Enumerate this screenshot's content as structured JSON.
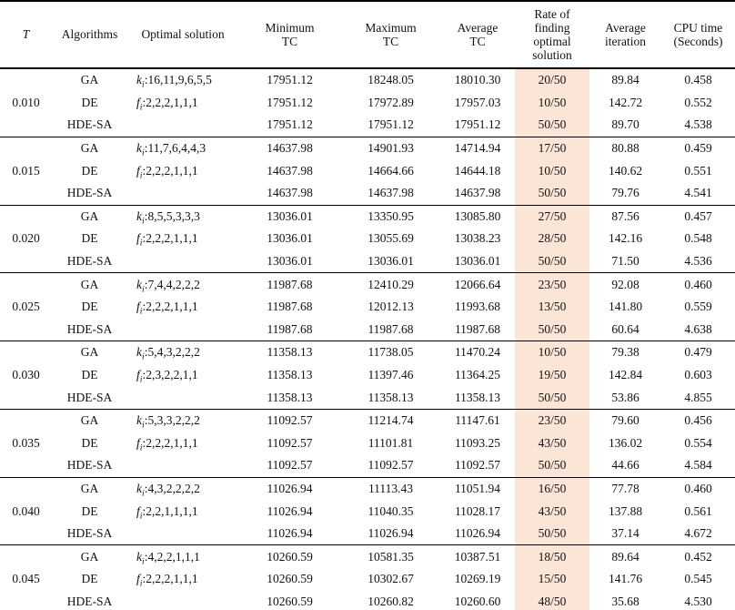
{
  "table": {
    "highlight_color": "#fbe5d6",
    "columns": [
      {
        "label": "T"
      },
      {
        "label": "Algorithms"
      },
      {
        "label": "Optimal solution"
      },
      {
        "label": "Minimum\nTC"
      },
      {
        "label": "Maximum\nTC"
      },
      {
        "label": "Average\nTC"
      },
      {
        "label": "Rate of\nfinding\noptimal\nsolution"
      },
      {
        "label": "Average\niteration"
      },
      {
        "label": "CPU time\n(Seconds)"
      }
    ],
    "groups": [
      {
        "t": "0.010",
        "rows": [
          {
            "algorithm": "GA",
            "solution_var": "k",
            "solution_sub": "i",
            "solution_rest": ":16,11,9,6,5,5",
            "min_tc": "17951.12",
            "max_tc": "18248.05",
            "avg_tc": "18010.30",
            "rate": "20/50",
            "avg_iter": "89.84",
            "cpu_time": "0.458"
          },
          {
            "algorithm": "DE",
            "solution_var": "f",
            "solution_sub": "i",
            "solution_rest": ":2,2,2,1,1,1",
            "min_tc": "17951.12",
            "max_tc": "17972.89",
            "avg_tc": "17957.03",
            "rate": "10/50",
            "avg_iter": "142.72",
            "cpu_time": "0.552"
          },
          {
            "algorithm": "HDE-SA",
            "solution_var": "",
            "solution_sub": "",
            "solution_rest": "",
            "min_tc": "17951.12",
            "max_tc": "17951.12",
            "avg_tc": "17951.12",
            "rate": "50/50",
            "avg_iter": "89.70",
            "cpu_time": "4.538"
          }
        ]
      },
      {
        "t": "0.015",
        "rows": [
          {
            "algorithm": "GA",
            "solution_var": "k",
            "solution_sub": "i",
            "solution_rest": ":11,7,6,4,4,3",
            "min_tc": "14637.98",
            "max_tc": "14901.93",
            "avg_tc": "14714.94",
            "rate": "17/50",
            "avg_iter": "80.88",
            "cpu_time": "0.459"
          },
          {
            "algorithm": "DE",
            "solution_var": "f",
            "solution_sub": "i",
            "solution_rest": ":2,2,2,1,1,1",
            "min_tc": "14637.98",
            "max_tc": "14664.66",
            "avg_tc": "14644.18",
            "rate": "10/50",
            "avg_iter": "140.62",
            "cpu_time": "0.551"
          },
          {
            "algorithm": "HDE-SA",
            "solution_var": "",
            "solution_sub": "",
            "solution_rest": "",
            "min_tc": "14637.98",
            "max_tc": "14637.98",
            "avg_tc": "14637.98",
            "rate": "50/50",
            "avg_iter": "79.76",
            "cpu_time": "4.541"
          }
        ]
      },
      {
        "t": "0.020",
        "rows": [
          {
            "algorithm": "GA",
            "solution_var": "k",
            "solution_sub": "i",
            "solution_rest": ":8,5,5,3,3,3",
            "min_tc": "13036.01",
            "max_tc": "13350.95",
            "avg_tc": "13085.80",
            "rate": "27/50",
            "avg_iter": "87.56",
            "cpu_time": "0.457"
          },
          {
            "algorithm": "DE",
            "solution_var": "f",
            "solution_sub": "i",
            "solution_rest": ":2,2,2,1,1,1",
            "min_tc": "13036.01",
            "max_tc": "13055.69",
            "avg_tc": "13038.23",
            "rate": "28/50",
            "avg_iter": "142.16",
            "cpu_time": "0.548"
          },
          {
            "algorithm": "HDE-SA",
            "solution_var": "",
            "solution_sub": "",
            "solution_rest": "",
            "min_tc": "13036.01",
            "max_tc": "13036.01",
            "avg_tc": "13036.01",
            "rate": "50/50",
            "avg_iter": "71.50",
            "cpu_time": "4.536"
          }
        ]
      },
      {
        "t": "0.025",
        "rows": [
          {
            "algorithm": "GA",
            "solution_var": "k",
            "solution_sub": "i",
            "solution_rest": ":7,4,4,2,2,2",
            "min_tc": "11987.68",
            "max_tc": "12410.29",
            "avg_tc": "12066.64",
            "rate": "23/50",
            "avg_iter": "92.08",
            "cpu_time": "0.460"
          },
          {
            "algorithm": "DE",
            "solution_var": "f",
            "solution_sub": "i",
            "solution_rest": ":2,2,2,1,1,1",
            "min_tc": "11987.68",
            "max_tc": "12012.13",
            "avg_tc": "11993.68",
            "rate": "13/50",
            "avg_iter": "141.80",
            "cpu_time": "0.559"
          },
          {
            "algorithm": "HDE-SA",
            "solution_var": "",
            "solution_sub": "",
            "solution_rest": "",
            "min_tc": "11987.68",
            "max_tc": "11987.68",
            "avg_tc": "11987.68",
            "rate": "50/50",
            "avg_iter": "60.64",
            "cpu_time": "4.638"
          }
        ]
      },
      {
        "t": "0.030",
        "rows": [
          {
            "algorithm": "GA",
            "solution_var": "k",
            "solution_sub": "i",
            "solution_rest": ":5,4,3,2,2,2",
            "min_tc": "11358.13",
            "max_tc": "11738.05",
            "avg_tc": "11470.24",
            "rate": "10/50",
            "avg_iter": "79.38",
            "cpu_time": "0.479"
          },
          {
            "algorithm": "DE",
            "solution_var": "f",
            "solution_sub": "i",
            "solution_rest": ":2,3,2,2,1,1",
            "min_tc": "11358.13",
            "max_tc": "11397.46",
            "avg_tc": "11364.25",
            "rate": "19/50",
            "avg_iter": "142.84",
            "cpu_time": "0.603"
          },
          {
            "algorithm": "HDE-SA",
            "solution_var": "",
            "solution_sub": "",
            "solution_rest": "",
            "min_tc": "11358.13",
            "max_tc": "11358.13",
            "avg_tc": "11358.13",
            "rate": "50/50",
            "avg_iter": "53.86",
            "cpu_time": "4.855"
          }
        ]
      },
      {
        "t": "0.035",
        "rows": [
          {
            "algorithm": "GA",
            "solution_var": "k",
            "solution_sub": "i",
            "solution_rest": ":5,3,3,2,2,2",
            "min_tc": "11092.57",
            "max_tc": "11214.74",
            "avg_tc": "11147.61",
            "rate": "23/50",
            "avg_iter": "79.60",
            "cpu_time": "0.456"
          },
          {
            "algorithm": "DE",
            "solution_var": "f",
            "solution_sub": "i",
            "solution_rest": ":2,2,2,1,1,1",
            "min_tc": "11092.57",
            "max_tc": "11101.81",
            "avg_tc": "11093.25",
            "rate": "43/50",
            "avg_iter": "136.02",
            "cpu_time": "0.554"
          },
          {
            "algorithm": "HDE-SA",
            "solution_var": "",
            "solution_sub": "",
            "solution_rest": "",
            "min_tc": "11092.57",
            "max_tc": "11092.57",
            "avg_tc": "11092.57",
            "rate": "50/50",
            "avg_iter": "44.66",
            "cpu_time": "4.584"
          }
        ]
      },
      {
        "t": "0.040",
        "rows": [
          {
            "algorithm": "GA",
            "solution_var": "k",
            "solution_sub": "i",
            "solution_rest": ":4,3,2,2,2,2",
            "min_tc": "11026.94",
            "max_tc": "11113.43",
            "avg_tc": "11051.94",
            "rate": "16/50",
            "avg_iter": "77.78",
            "cpu_time": "0.460"
          },
          {
            "algorithm": "DE",
            "solution_var": "f",
            "solution_sub": "i",
            "solution_rest": ":2,2,1,1,1,1",
            "min_tc": "11026.94",
            "max_tc": "11040.35",
            "avg_tc": "11028.17",
            "rate": "43/50",
            "avg_iter": "137.88",
            "cpu_time": "0.561"
          },
          {
            "algorithm": "HDE-SA",
            "solution_var": "",
            "solution_sub": "",
            "solution_rest": "",
            "min_tc": "11026.94",
            "max_tc": "11026.94",
            "avg_tc": "11026.94",
            "rate": "50/50",
            "avg_iter": "37.14",
            "cpu_time": "4.672"
          }
        ]
      },
      {
        "t": "0.045",
        "rows": [
          {
            "algorithm": "GA",
            "solution_var": "k",
            "solution_sub": "i",
            "solution_rest": ":4,2,2,1,1,1",
            "min_tc": "10260.59",
            "max_tc": "10581.35",
            "avg_tc": "10387.51",
            "rate": "18/50",
            "avg_iter": "89.64",
            "cpu_time": "0.452"
          },
          {
            "algorithm": "DE",
            "solution_var": "f",
            "solution_sub": "i",
            "solution_rest": ":2,2,2,1,1,1",
            "min_tc": "10260.59",
            "max_tc": "10302.67",
            "avg_tc": "10269.19",
            "rate": "15/50",
            "avg_iter": "141.76",
            "cpu_time": "0.545"
          },
          {
            "algorithm": "HDE-SA",
            "solution_var": "",
            "solution_sub": "",
            "solution_rest": "",
            "min_tc": "10260.59",
            "max_tc": "10260.82",
            "avg_tc": "10260.60",
            "rate": "48/50",
            "avg_iter": "35.68",
            "cpu_time": "4.530"
          }
        ]
      }
    ]
  }
}
